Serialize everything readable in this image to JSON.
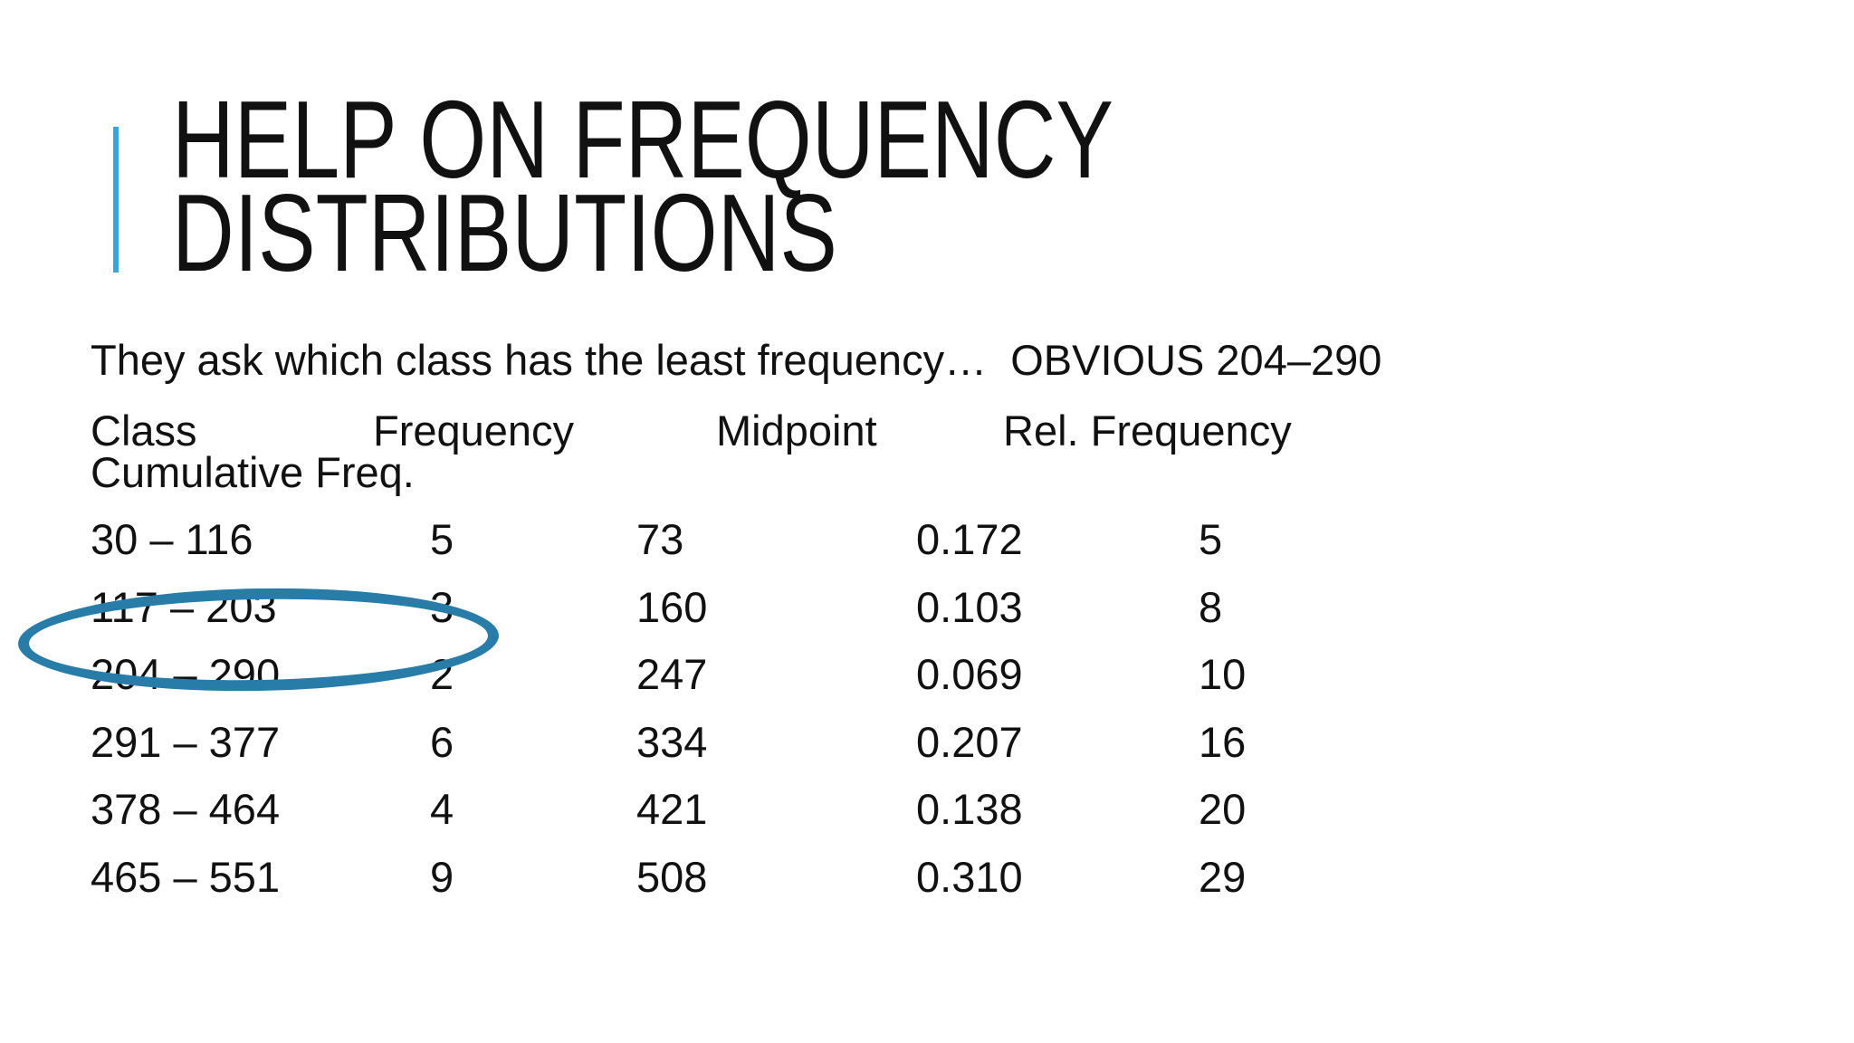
{
  "slide": {
    "title": "HELP ON FREQUENCY DISTRIBUTIONS",
    "intro": "They ask which class has the least frequency…  OBVIOUS 204–290",
    "table": {
      "headers": [
        "Class",
        "Frequency",
        "Midpoint",
        "Rel. Frequency",
        "Cumulative Freq."
      ],
      "rows": [
        [
          "30 – 116",
          "5",
          "73",
          "0.172",
          "5"
        ],
        [
          "117 – 203",
          "3",
          "160",
          "0.103",
          "8"
        ],
        [
          "204 – 290",
          "2",
          "247",
          "0.069",
          "10"
        ],
        [
          "291 – 377",
          "6",
          "334",
          "0.207",
          "16"
        ],
        [
          "378 – 464",
          "4",
          "421",
          "0.138",
          "20"
        ],
        [
          "465 – 551",
          "9",
          "508",
          "0.310",
          "29"
        ]
      ]
    },
    "annotation": {
      "shape": "ellipse",
      "highlighted_rows": "117 – 203 and 204 – 290",
      "color": "#277ca8"
    },
    "colors": {
      "accent_bar": "#38a5dc",
      "text": "#111111",
      "background": "#ffffff"
    }
  }
}
